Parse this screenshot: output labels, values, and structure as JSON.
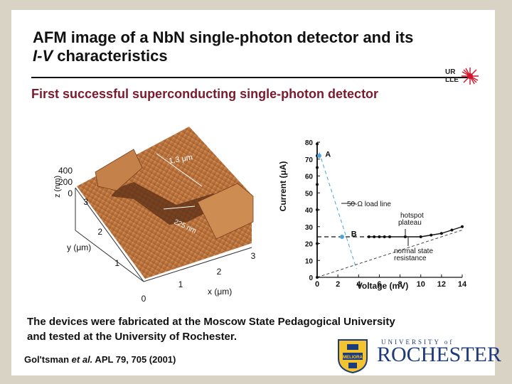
{
  "slide": {
    "title_line1": "AFM image of a NbN single-photon detector and its",
    "title_line2_italic": "I-V",
    "title_line2_rest": " characteristics",
    "subtitle": "First successful superconducting single-photon detector",
    "logo_text": [
      "UR",
      "LLE"
    ],
    "caption_line1": "The devices were fabricated at the Moscow State Pedagogical University",
    "caption_line2": "and tested at the University of Rochester.",
    "reference_author": "Gol'tsman ",
    "reference_etal": "et al.",
    "reference_rest": " APL 79, 705 (2001)",
    "university_top": "UNIVERSITY of",
    "university_name": "ROCHESTER",
    "seal_text": "MELIORA"
  },
  "afm": {
    "z_label": "z (nm)",
    "z_ticks": [
      "400",
      "200",
      "0"
    ],
    "y_label": "y (μm)",
    "y_ticks": [
      "3",
      "2",
      "1"
    ],
    "x_label": "x (μm)",
    "x_ticks": [
      "0",
      "1",
      "2",
      "3"
    ],
    "annotation_width": "1.3 μm",
    "annotation_thickness": "225 nm"
  },
  "chart_data": {
    "type": "line",
    "xlabel": "Voltage (mV)",
    "ylabel": "Current (μA)",
    "xlim": [
      0,
      14
    ],
    "ylim": [
      0,
      80
    ],
    "x_ticks": [
      0,
      2,
      4,
      6,
      8,
      10,
      12,
      14
    ],
    "y_ticks": [
      0,
      10,
      20,
      30,
      40,
      50,
      60,
      70,
      80
    ],
    "series": [
      {
        "points": [
          [
            0,
            0
          ],
          [
            0,
            20
          ],
          [
            0,
            40
          ],
          [
            0,
            55
          ],
          [
            0,
            65
          ],
          [
            0,
            72
          ],
          [
            0,
            79
          ],
          [
            5,
            24
          ],
          [
            5.5,
            24
          ],
          [
            6,
            24
          ],
          [
            6.5,
            24
          ],
          [
            7,
            24
          ],
          [
            8.5,
            24
          ],
          [
            10,
            24
          ],
          [
            11,
            25
          ],
          [
            12,
            26
          ],
          [
            13,
            28
          ],
          [
            14,
            30
          ]
        ]
      }
    ],
    "load_line": [
      [
        0.2,
        74
      ],
      [
        3.8,
        5
      ]
    ],
    "resistance_line": [
      [
        0,
        0
      ],
      [
        14,
        28
      ]
    ],
    "plateau_dashed": [
      [
        0,
        24
      ],
      [
        5,
        24
      ]
    ],
    "points_labels": [
      {
        "text": "A",
        "x": 0.5,
        "y": 73
      },
      {
        "text": "B",
        "x": 3.0,
        "y": 26
      }
    ],
    "annotations": [
      "50-Ω load line",
      "hotspot",
      "plateau",
      "normal state",
      "resistance"
    ]
  }
}
